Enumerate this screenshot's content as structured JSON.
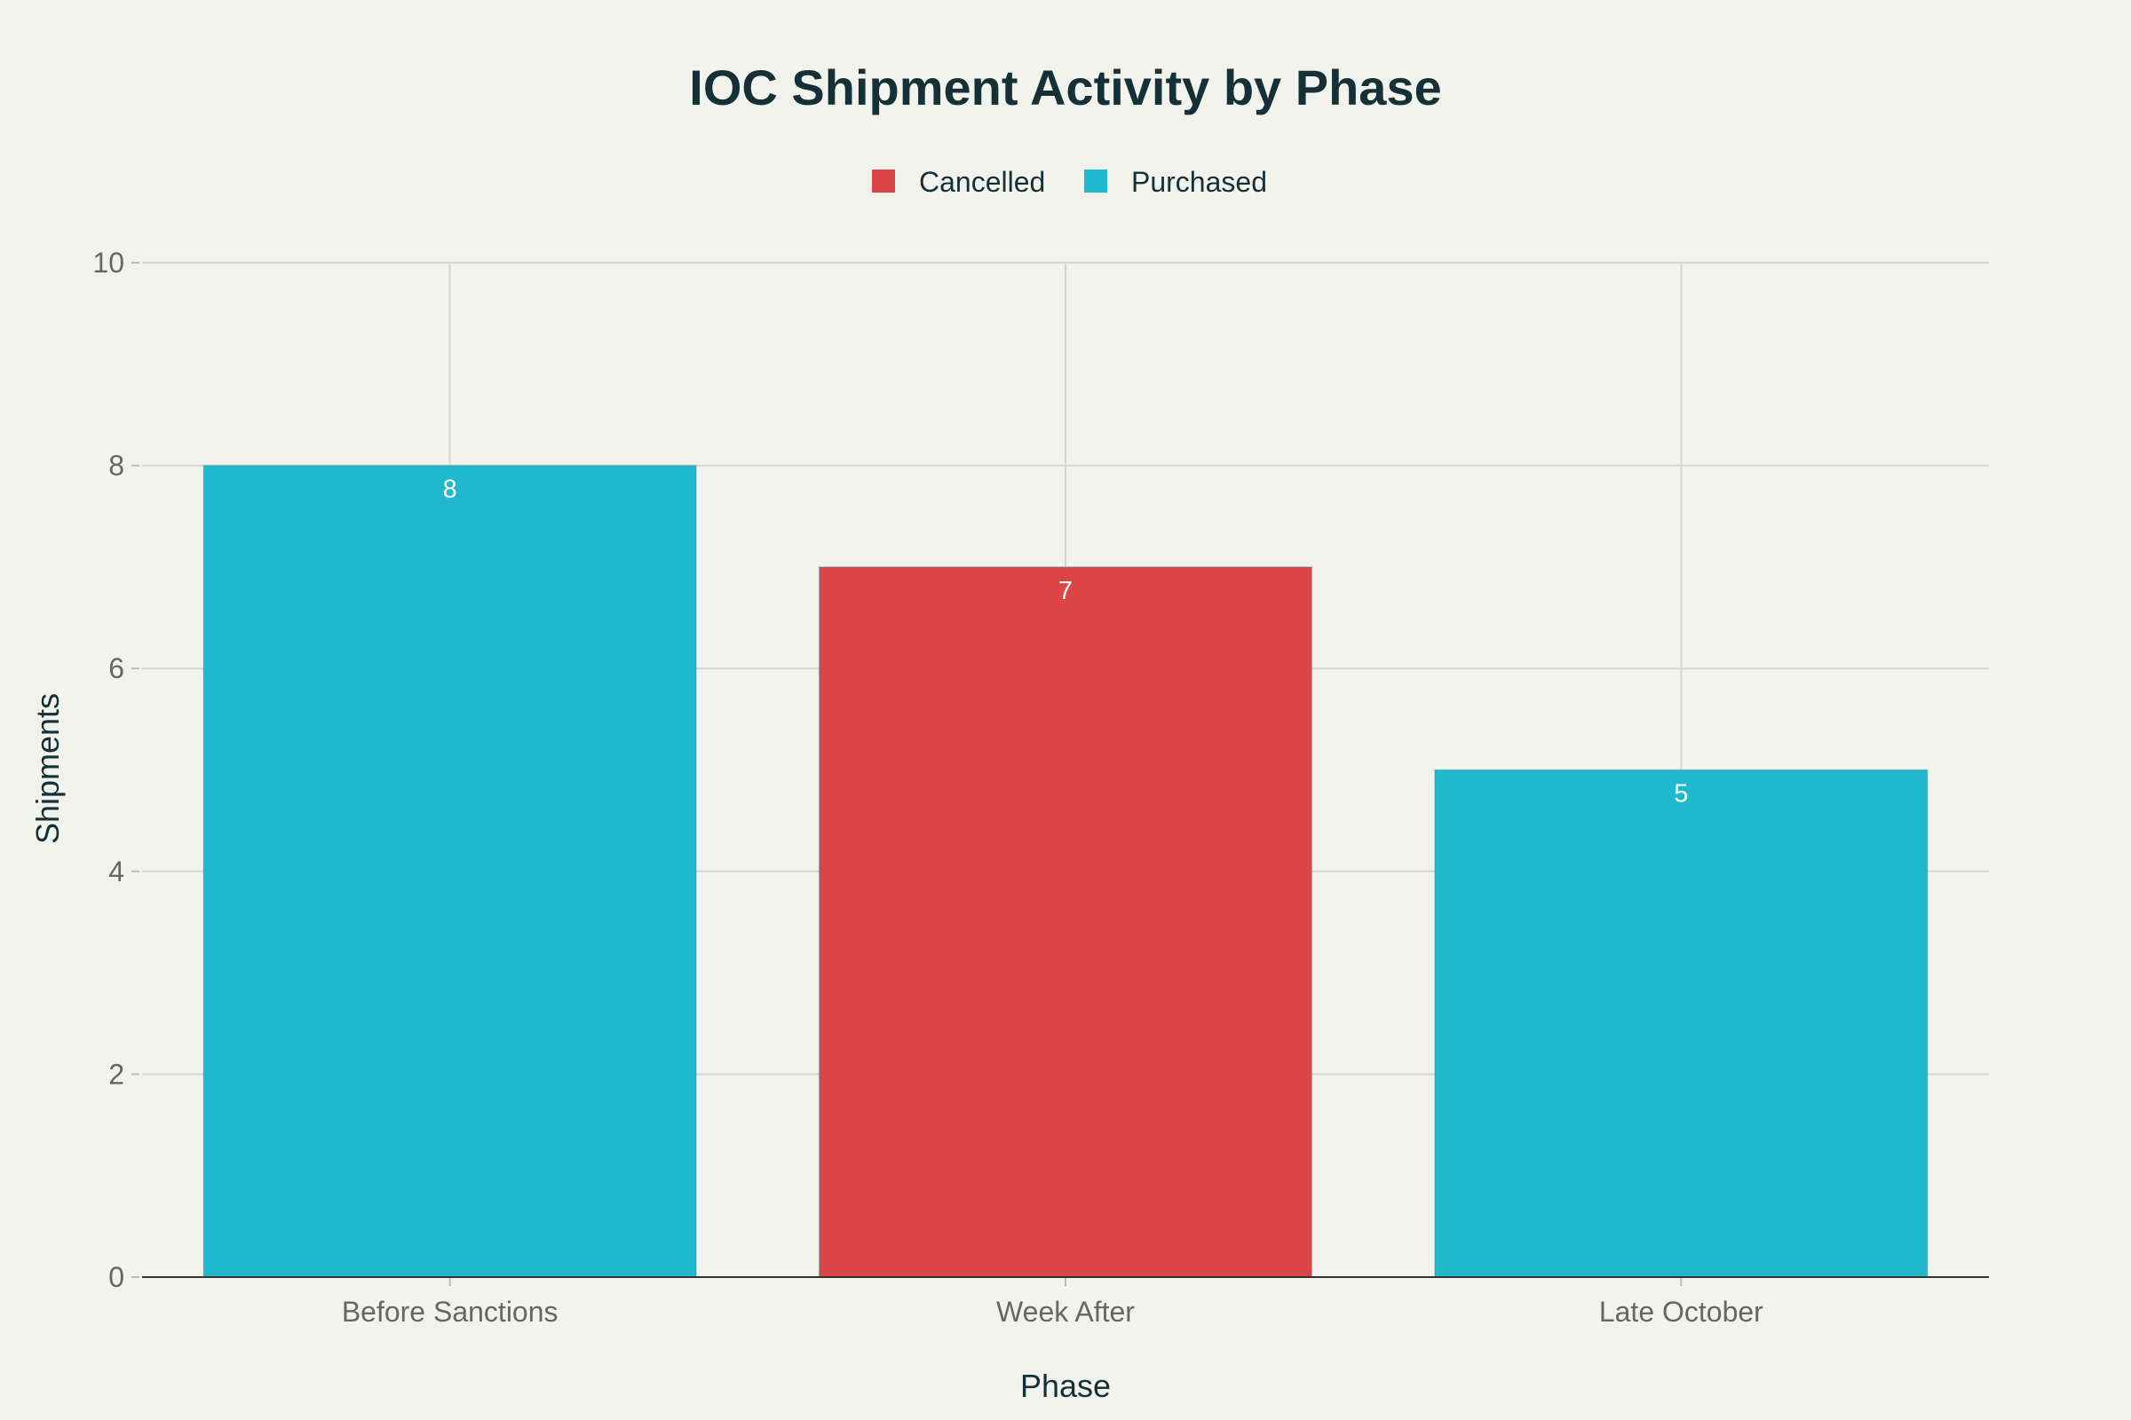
{
  "chart_data": {
    "type": "bar",
    "title": "IOC Shipment Activity by Phase",
    "xlabel": "Phase",
    "ylabel": "Shipments",
    "categories": [
      "Before Sanctions",
      "Week After",
      "Late October"
    ],
    "values": [
      8,
      7,
      5
    ],
    "bar_status": [
      "Purchased",
      "Cancelled",
      "Purchased"
    ],
    "ylim": [
      0,
      10
    ],
    "yticks": [
      0,
      2,
      4,
      6,
      8,
      10
    ],
    "legend": [
      {
        "name": "Cancelled",
        "color": "#db4545"
      },
      {
        "name": "Purchased",
        "color": "#1fb8cd"
      }
    ],
    "legend_position": "top-center",
    "grid": true
  }
}
